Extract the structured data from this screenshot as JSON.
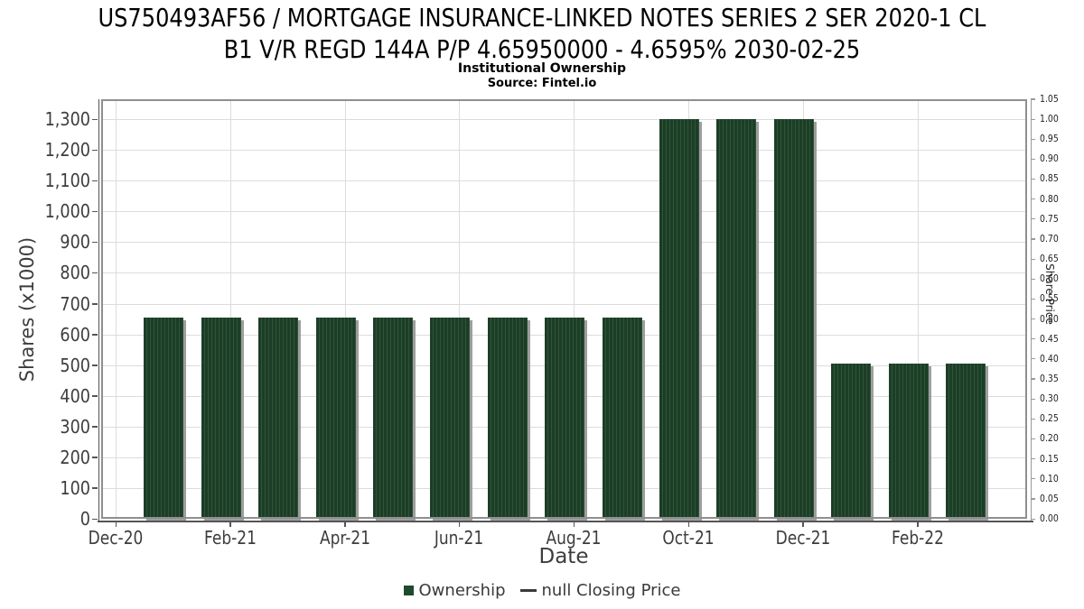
{
  "page": {
    "title_lines": [
      "US750493AF56 / MORTGAGE INSURANCE-LINKED NOTES SERIES 2 SER 2020-1 CL",
      "B1 V/R REGD 144A P/P 4.65950000 - 4.6595% 2030-02-25"
    ],
    "subtitle": "Institutional Ownership",
    "source": "Source: Fintel.io"
  },
  "chart_data": {
    "type": "bar",
    "title": "US750493AF56 / MORTGAGE INSURANCE-LINKED NOTES SERIES 2 SER 2020-1 CL B1 V/R REGD 144A P/P 4.65950000 - 4.6595% 2030-02-25",
    "subtitle": "Institutional Ownership",
    "source": "Source: Fintel.io",
    "xlabel": "Date",
    "ylabel_left": "Shares (x1000)",
    "ylabel_right": "Share Price",
    "legend_position": "bottom",
    "grid": true,
    "legend": [
      {
        "label": "Ownership",
        "marker": "square",
        "color": "#1f4a2c"
      },
      {
        "label": "null Closing Price",
        "marker": "dash",
        "color": "#3a3a3a"
      }
    ],
    "categories": [
      "Jan-21",
      "Feb-21",
      "Mar-21",
      "Apr-21",
      "May-21",
      "Jun-21",
      "Jul-21",
      "Aug-21",
      "Sep-21",
      "Oct-21",
      "Nov-21",
      "Dec-21",
      "Jan-22",
      "Feb-22",
      "Mar-22"
    ],
    "series": [
      {
        "name": "Ownership",
        "values": [
          655,
          655,
          655,
          655,
          655,
          655,
          655,
          655,
          655,
          1300,
          1300,
          1300,
          505,
          505,
          505
        ]
      },
      {
        "name": "null Closing Price",
        "values": null
      }
    ],
    "x_tick_labels": [
      "Dec-20",
      "Feb-21",
      "Apr-21",
      "Jun-21",
      "Aug-21",
      "Oct-21",
      "Dec-21",
      "Feb-22"
    ],
    "left_axis": {
      "min": 0,
      "max": 1365,
      "tick_step": 100,
      "tick_labels": [
        "0",
        "100",
        "200",
        "300",
        "400",
        "500",
        "600",
        "700",
        "800",
        "900",
        "1,000",
        "1,100",
        "1,200",
        "1,300"
      ]
    },
    "right_axis": {
      "min": 0,
      "max": 1.05,
      "tick_step": 0.05,
      "tick_labels": [
        "0.00",
        "0.05",
        "0.10",
        "0.15",
        "0.20",
        "0.25",
        "0.30",
        "0.35",
        "0.40",
        "0.45",
        "0.50",
        "0.55",
        "0.60",
        "0.65",
        "0.70",
        "0.75",
        "0.80",
        "0.85",
        "0.90",
        "0.95",
        "1.00",
        "1.05"
      ]
    },
    "colors": {
      "bar_dark": "#1c3e26",
      "bar_light": "#2f5438",
      "bar_shadow": "#949494",
      "gridline": "#dcdcdc",
      "axis_text": "#3d3d3d"
    }
  }
}
